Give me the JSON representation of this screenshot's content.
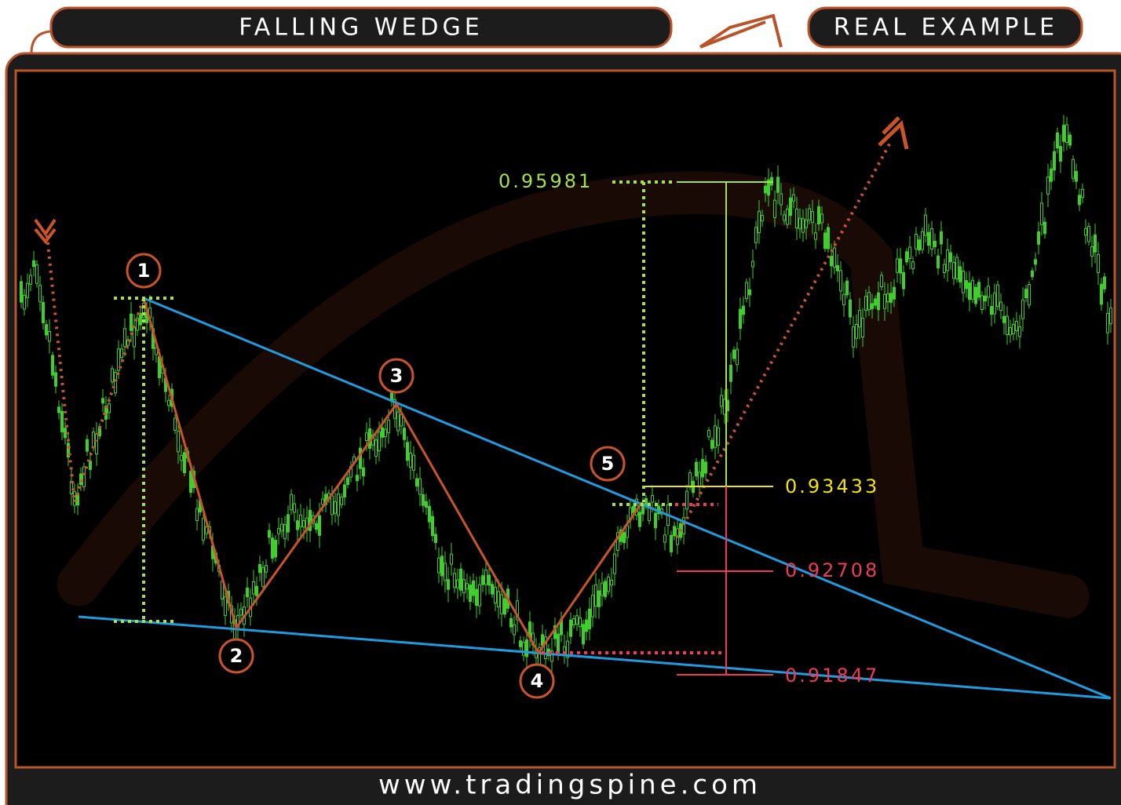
{
  "header": {
    "title": "FALLING WEDGE",
    "tag": "REAL EXAMPLE"
  },
  "points": [
    "1",
    "2",
    "3",
    "4",
    "5"
  ],
  "levels": {
    "target": "0.95981",
    "breakout": "0.93433",
    "stop": "0.92708",
    "low": "0.91847"
  },
  "footer": "www.tradingspine.com"
}
